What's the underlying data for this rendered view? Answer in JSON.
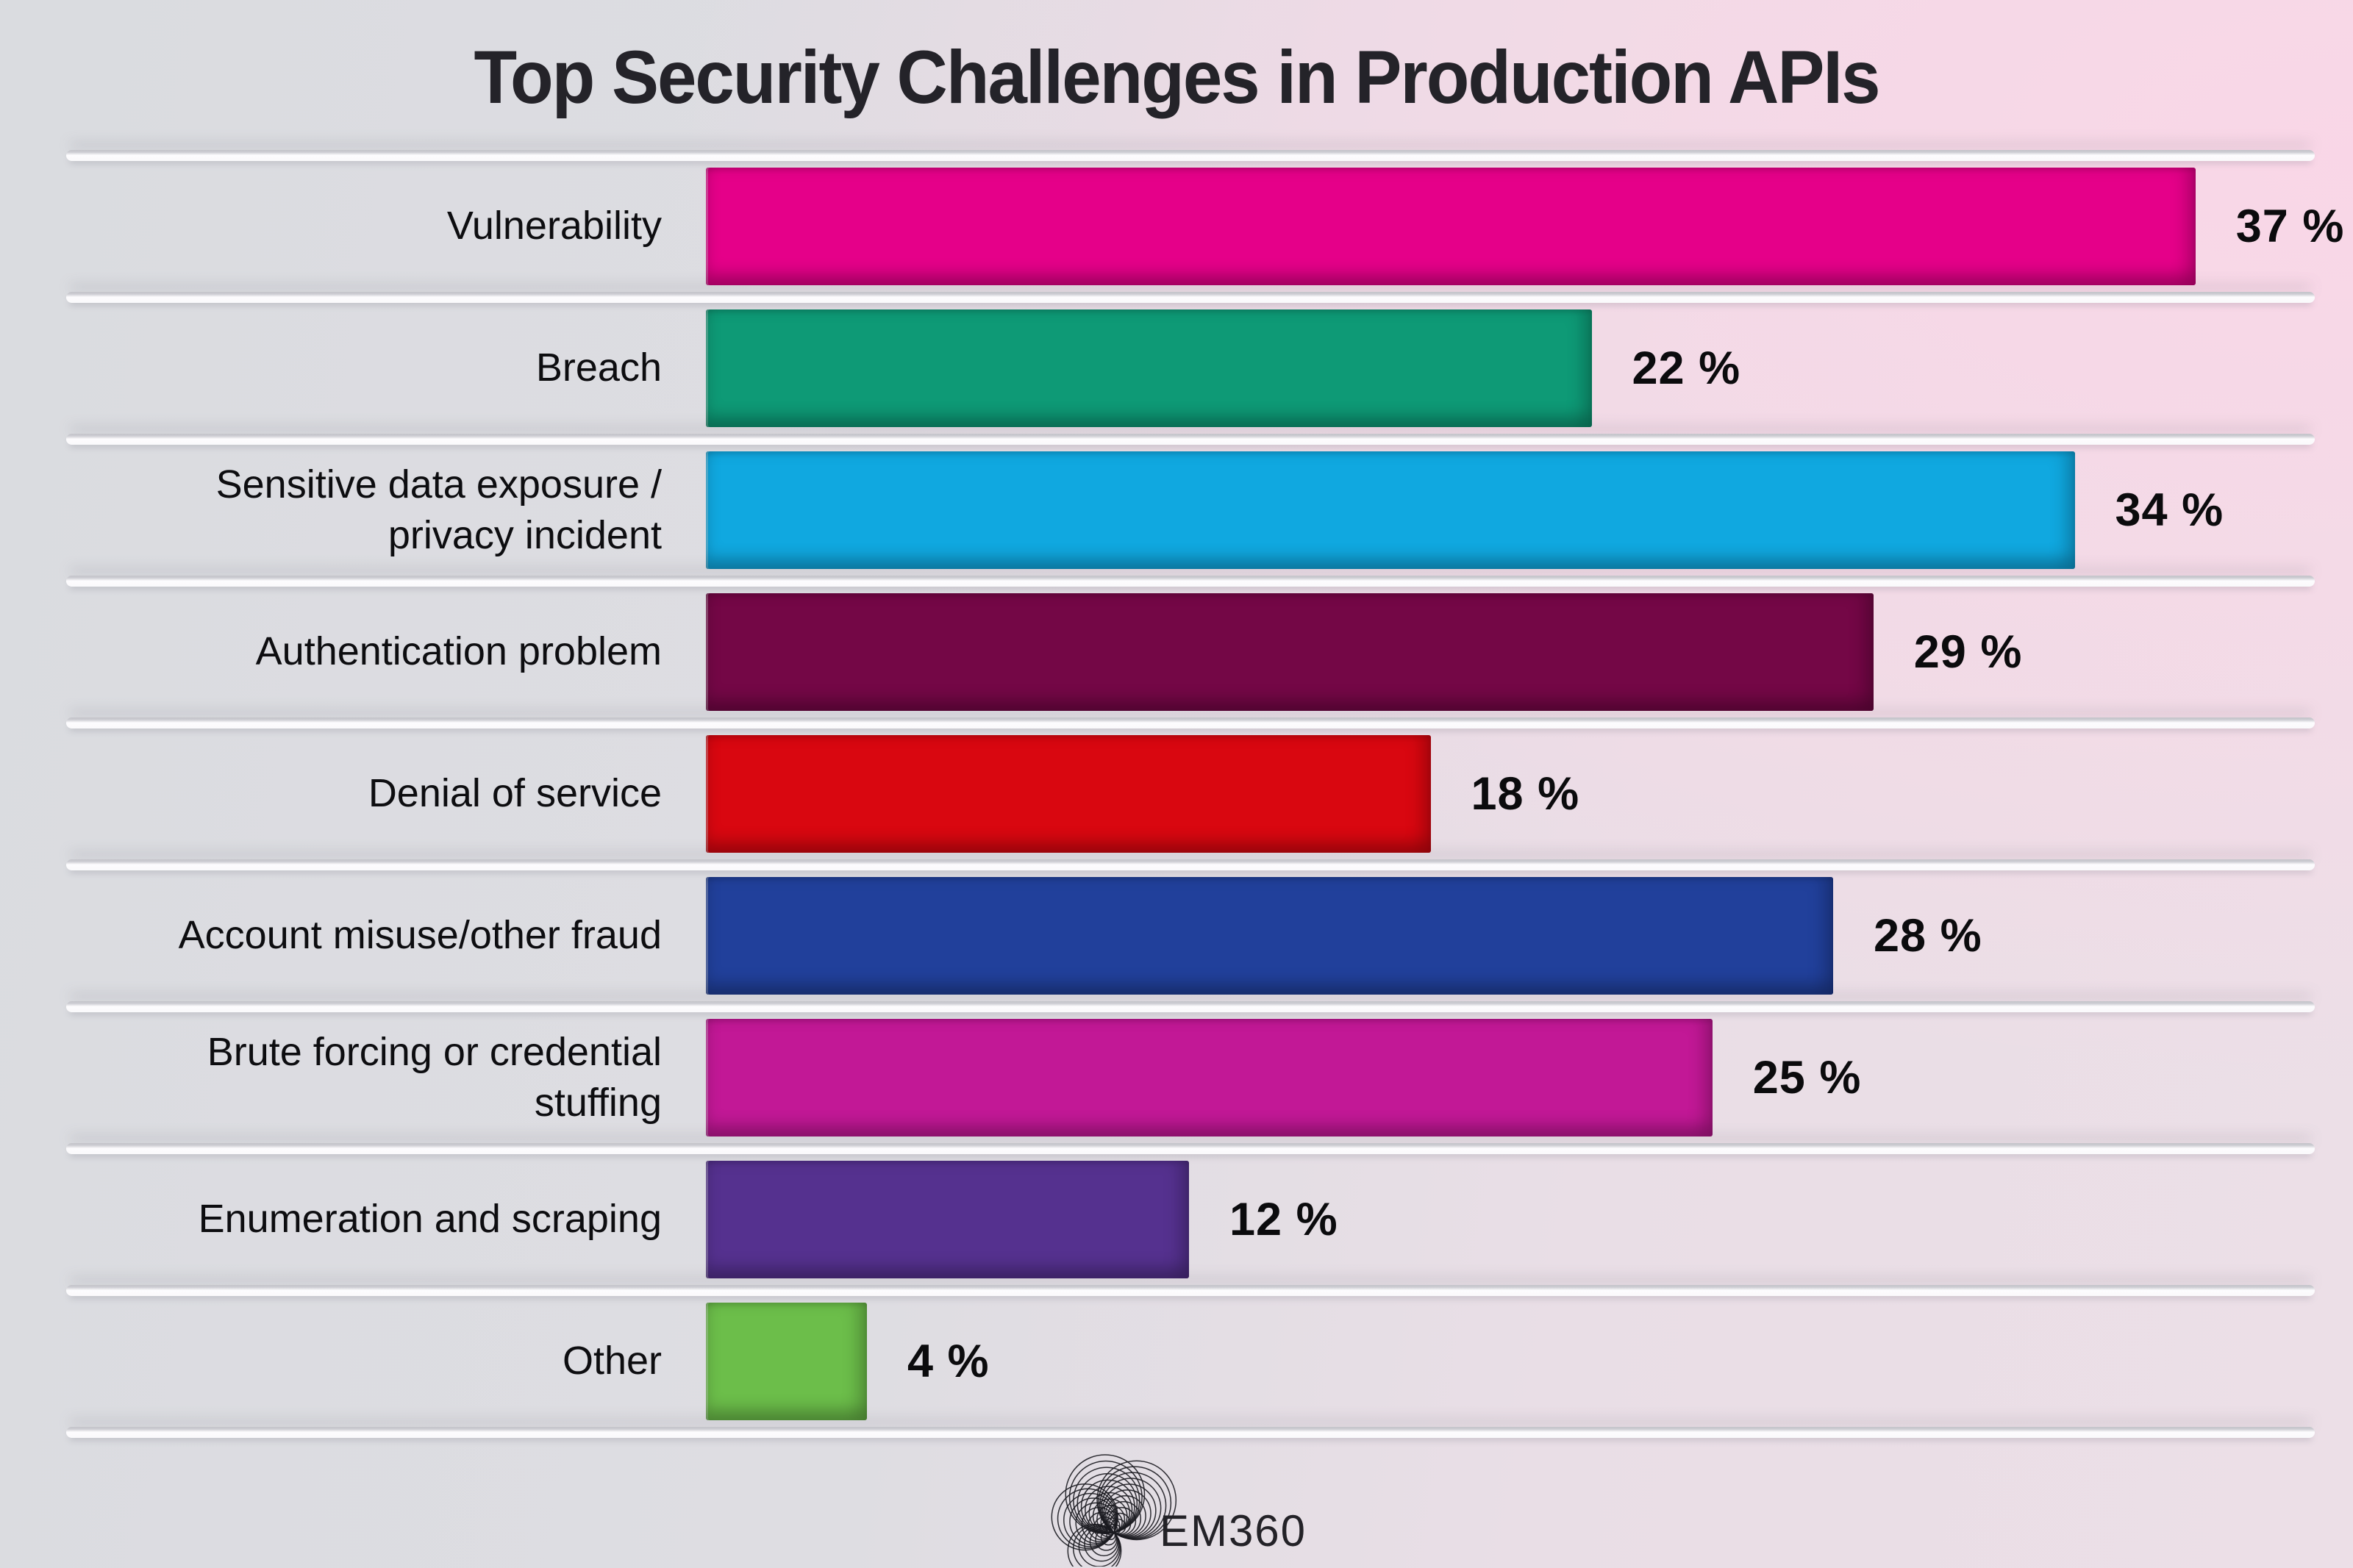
{
  "title": "Top Security Challenges in Production APIs",
  "footer": {
    "logo_text": "EM360"
  },
  "chart_data": {
    "type": "bar",
    "orientation": "horizontal",
    "title": "Top Security Challenges in Production APIs",
    "categories": [
      "Vulnerability",
      "Breach",
      "Sensitive data exposure / privacy incident",
      "Authentication problem",
      "Denial of service",
      "Account misuse/other fraud",
      "Brute forcing or credential stuffing",
      "Enumeration and scraping",
      "Other"
    ],
    "values": [
      37,
      22,
      34,
      29,
      18,
      28,
      25,
      12,
      4
    ],
    "value_labels": [
      "37 %",
      "22 %",
      "34 %",
      "29 %",
      "18 %",
      "28 %",
      "25 %",
      "12 %",
      "4 %"
    ],
    "colors": [
      "#e50089",
      "#0e9a76",
      "#10a8e0",
      "#740746",
      "#d90710",
      "#21409b",
      "#c21896",
      "#55318f",
      "#6cbe4a"
    ],
    "unit": "%",
    "xlim": [
      0,
      40
    ],
    "grid": false,
    "legend": false,
    "value_label_position": "right-of-bar",
    "background_gradient": [
      "#dadce0",
      "#f8d8e7"
    ]
  }
}
